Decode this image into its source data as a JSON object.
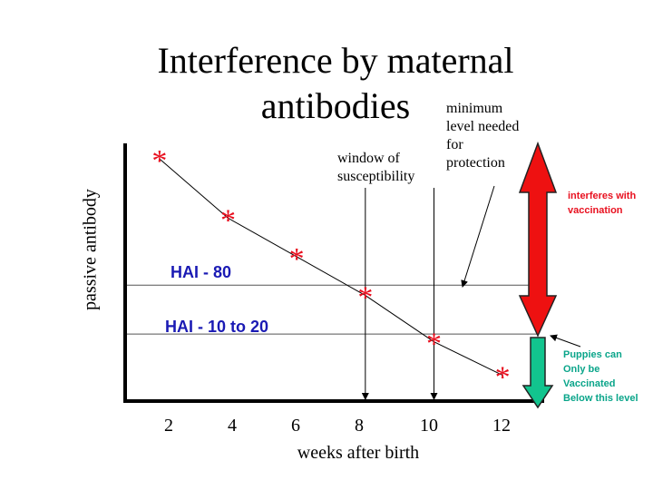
{
  "title_line1": "Interference by maternal",
  "title_line2": "antibodies",
  "chart_data": {
    "type": "line",
    "xlabel": "weeks after birth",
    "ylabel": "passive antibody",
    "x_ticks": [
      2,
      4,
      6,
      8,
      10,
      12
    ],
    "xlim": [
      1,
      13
    ],
    "ylim": [
      0,
      100
    ],
    "points": [
      {
        "x": 2,
        "y": 94
      },
      {
        "x": 4,
        "y": 71
      },
      {
        "x": 6,
        "y": 56
      },
      {
        "x": 8,
        "y": 41
      },
      {
        "x": 10,
        "y": 23
      },
      {
        "x": 12,
        "y": 10
      }
    ],
    "thresholds": [
      {
        "label": "HAI - 80",
        "y": 45
      },
      {
        "label": "HAI - 10 to 20",
        "y": 26
      }
    ],
    "window_lines_x": [
      8,
      10
    ],
    "marker_symbol": "*",
    "marker_color": "#e8101f",
    "label_color": "#1a1ab4"
  },
  "annotations": {
    "window": "window of susceptibility",
    "minimum_line1": "minimum",
    "minimum_line2": "level needed",
    "minimum_line3": "for",
    "minimum_line4": "protection",
    "interferes": "interferes with vaccination",
    "puppies_line1": "Puppies can",
    "puppies_line2": "Only be",
    "puppies_line3": "Vaccinated",
    "puppies_line4": "Below this level"
  },
  "colors": {
    "red_arrow": "#ee1111",
    "green_arrow": "#12c48e"
  }
}
